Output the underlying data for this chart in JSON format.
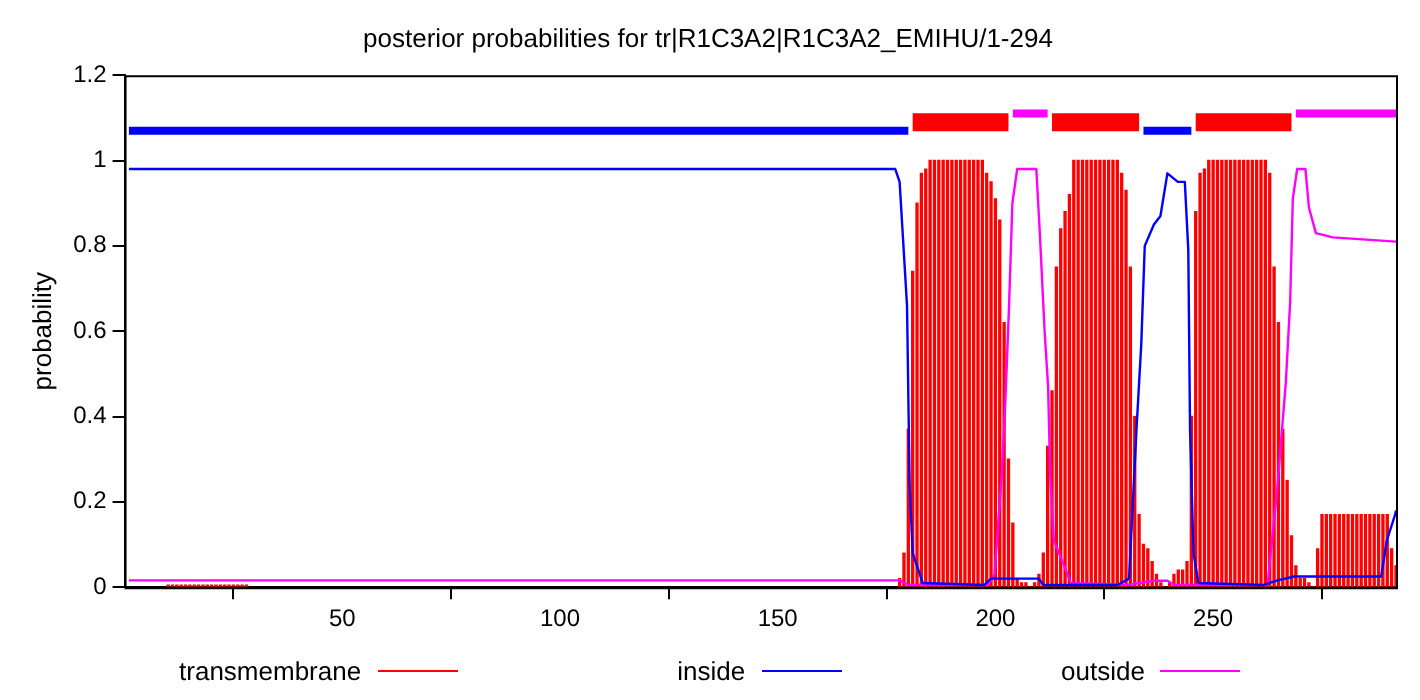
{
  "chart_data": {
    "type": "line",
    "title": "posterior probabilities for tr|R1C3A2|R1C3A2_EMIHU/1-294",
    "ylabel": "probability",
    "xlim": [
      0,
      292
    ],
    "xticks": [
      50,
      100,
      150,
      200,
      250
    ],
    "ylim": [
      0,
      1.2
    ],
    "yticks": [
      0,
      0.2,
      0.4,
      0.6,
      0.8,
      1,
      1.2
    ],
    "grid": false,
    "legend": "bottom",
    "marker": "none",
    "line_style": "solid",
    "series": [
      {
        "name": "transmembrane",
        "type": "bar",
        "color": "#ff0000",
        "x": [
          10,
          11,
          12,
          13,
          14,
          15,
          16,
          17,
          18,
          19,
          20,
          21,
          22,
          23,
          24,
          25,
          26,
          27,
          28,
          178,
          179,
          180,
          181,
          182,
          183,
          184,
          185,
          186,
          187,
          188,
          189,
          190,
          191,
          192,
          193,
          194,
          195,
          196,
          197,
          198,
          199,
          200,
          201,
          202,
          203,
          204,
          205,
          206,
          207,
          208,
          209,
          210,
          211,
          212,
          213,
          214,
          215,
          216,
          217,
          218,
          219,
          220,
          221,
          222,
          223,
          224,
          225,
          226,
          227,
          228,
          229,
          230,
          231,
          232,
          233,
          234,
          235,
          236,
          237,
          238,
          239,
          240,
          241,
          242,
          243,
          244,
          245,
          246,
          247,
          248,
          249,
          250,
          251,
          252,
          253,
          254,
          255,
          256,
          257,
          258,
          259,
          260,
          261,
          262,
          263,
          264,
          265,
          266,
          267,
          268,
          269,
          270,
          271,
          272,
          273,
          274,
          275,
          276,
          277,
          278,
          279,
          280,
          281,
          282,
          283,
          284,
          285,
          286,
          287,
          288,
          289,
          290,
          291,
          292
        ],
        "values": [
          0.005,
          0.005,
          0.005,
          0.005,
          0.005,
          0.005,
          0.005,
          0.005,
          0.005,
          0.005,
          0.005,
          0.005,
          0.005,
          0.005,
          0.005,
          0.005,
          0.005,
          0.005,
          0.005,
          0.02,
          0.08,
          0.37,
          0.74,
          0.9,
          0.97,
          0.98,
          1,
          1,
          1,
          1,
          1,
          1,
          1,
          1,
          1,
          1,
          1,
          1,
          1,
          0.97,
          0.95,
          0.91,
          0.86,
          0.62,
          0.3,
          0.15,
          0.02,
          0.01,
          0.01,
          0,
          0.01,
          0.03,
          0.08,
          0.33,
          0.46,
          0.75,
          0.84,
          0.88,
          0.92,
          1,
          1,
          1,
          1,
          1,
          1,
          1,
          1,
          1,
          1,
          1,
          0.97,
          0.93,
          0.75,
          0.4,
          0.17,
          0.1,
          0.09,
          0.06,
          0.03,
          0.01,
          0,
          0.01,
          0.03,
          0.04,
          0.04,
          0.06,
          0.4,
          0.88,
          0.97,
          0.98,
          1,
          1,
          1,
          1,
          1,
          1,
          1,
          1,
          1,
          1,
          1,
          1,
          1,
          1,
          0.97,
          0.75,
          0.62,
          0.37,
          0.25,
          0.12,
          0.05,
          0.02,
          0.02,
          0.01,
          0,
          0.09,
          0.17,
          0.17,
          0.17,
          0.17,
          0.17,
          0.17,
          0.17,
          0.17,
          0.17,
          0.17,
          0.17,
          0.17,
          0.17,
          0.17,
          0.17,
          0.17,
          0.09,
          0.05
        ]
      },
      {
        "name": "inside",
        "color": "#0000ff",
        "x": [
          1,
          177,
          178,
          179.7,
          180.3,
          181,
          183.3,
          197.4,
          199,
          210,
          211,
          228,
          230.7,
          232.4,
          233.5,
          234.3,
          236.4,
          237.9,
          239.5,
          241.9,
          243.5,
          244.3,
          244.7,
          245.5,
          246.6,
          261.5,
          264.8,
          268.6,
          288.6,
          289.9,
          291.8,
          292
        ],
        "values": [
          0.98,
          0.98,
          0.95,
          0.66,
          0.24,
          0.08,
          0.01,
          0.005,
          0.02,
          0.02,
          0.005,
          0.005,
          0.02,
          0.37,
          0.57,
          0.8,
          0.85,
          0.87,
          0.97,
          0.95,
          0.95,
          0.79,
          0.37,
          0.08,
          0.01,
          0.005,
          0.016,
          0.025,
          0.025,
          0.11,
          0.17,
          0.18
        ]
      },
      {
        "name": "outside",
        "color": "#ff00ff",
        "x": [
          1,
          178,
          180,
          198.3,
          199.8,
          201.5,
          202.3,
          203.1,
          203.9,
          205,
          209.4,
          210.2,
          211.3,
          212.1,
          212.6,
          213.4,
          215.8,
          217.3,
          230,
          236.4,
          239.5,
          241.1,
          262.5,
          264.8,
          266.7,
          267.7,
          268.3,
          269.3,
          271.2,
          272,
          273.6,
          277.5,
          292
        ],
        "values": [
          0.016,
          0.016,
          0.005,
          0.005,
          0.03,
          0.27,
          0.44,
          0.65,
          0.9,
          0.98,
          0.98,
          0.83,
          0.6,
          0.47,
          0.26,
          0.11,
          0.05,
          0.01,
          0.005,
          0.015,
          0.015,
          0.005,
          0.005,
          0.24,
          0.48,
          0.67,
          0.91,
          0.98,
          0.98,
          0.89,
          0.83,
          0.82,
          0.81
        ]
      },
      {
        "color": "#0000ff",
        "x": [
          1,
          180
        ],
        "values": [
          1.07,
          1.07
        ]
      },
      {
        "color": "#ff0000",
        "x": [
          181,
          203
        ],
        "values": [
          1.09,
          1.09
        ]
      },
      {
        "color": "#ff00ff",
        "x": [
          204,
          212
        ],
        "values": [
          1.11,
          1.11
        ]
      },
      {
        "color": "#ff0000",
        "x": [
          213,
          233
        ],
        "values": [
          1.09,
          1.09
        ]
      },
      {
        "color": "#0000ff",
        "x": [
          234,
          245
        ],
        "values": [
          1.07,
          1.07
        ]
      },
      {
        "color": "#ff0000",
        "x": [
          246,
          268
        ],
        "values": [
          1.09,
          1.09
        ]
      },
      {
        "color": "#ff00ff",
        "x": [
          269,
          292
        ],
        "values": [
          1.11,
          1.11
        ]
      }
    ]
  }
}
